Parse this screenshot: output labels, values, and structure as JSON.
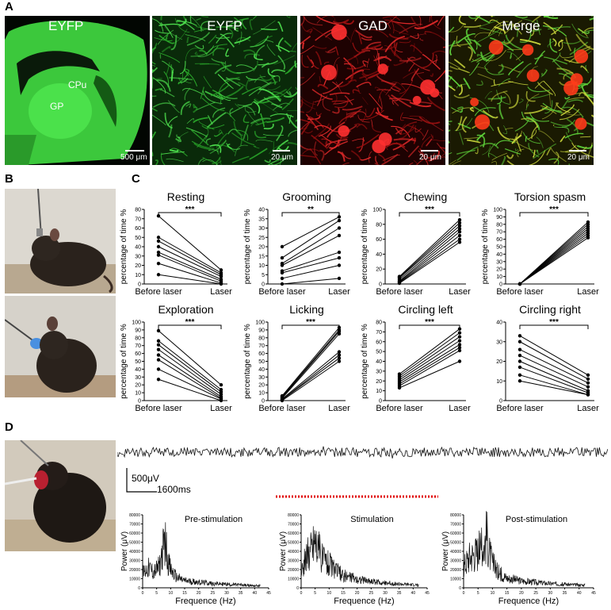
{
  "panels": {
    "a": "A",
    "b": "B",
    "c": "C",
    "d": "D"
  },
  "panel_a": {
    "images": [
      {
        "title": "EYFP",
        "scale": "500 μm",
        "labels": [
          "CPu",
          "GP"
        ]
      },
      {
        "title": "EYFP",
        "scale": "20 μm"
      },
      {
        "title": "GAD",
        "scale": "20 μm"
      },
      {
        "title": "Merge",
        "scale": "20 μm"
      }
    ]
  },
  "chart_data": [
    {
      "type": "line",
      "title": "Resting",
      "ylabel": "percentage of time %",
      "categories": [
        "Before laser",
        "Laser"
      ],
      "ylim": [
        0,
        80
      ],
      "yticks": [
        0,
        10,
        20,
        30,
        40,
        50,
        60,
        70,
        80
      ],
      "sig": "***",
      "series": [
        {
          "values": [
            73,
            15
          ]
        },
        {
          "values": [
            50,
            12
          ]
        },
        {
          "values": [
            46,
            10
          ]
        },
        {
          "values": [
            40,
            8
          ]
        },
        {
          "values": [
            34,
            5
          ]
        },
        {
          "values": [
            31,
            3
          ]
        },
        {
          "values": [
            22,
            1
          ]
        },
        {
          "values": [
            10,
            0
          ]
        }
      ]
    },
    {
      "type": "line",
      "title": "Grooming",
      "ylabel": "percentage of time %",
      "categories": [
        "Before laser",
        "Laser"
      ],
      "ylim": [
        0,
        40
      ],
      "yticks": [
        0,
        5,
        10,
        15,
        20,
        25,
        30,
        35,
        40
      ],
      "sig": "**",
      "series": [
        {
          "values": [
            20,
            36
          ]
        },
        {
          "values": [
            14,
            34
          ]
        },
        {
          "values": [
            11,
            30
          ]
        },
        {
          "values": [
            10,
            26
          ]
        },
        {
          "values": [
            7,
            17
          ]
        },
        {
          "values": [
            6,
            14
          ]
        },
        {
          "values": [
            3,
            10
          ]
        },
        {
          "values": [
            0,
            3
          ]
        }
      ]
    },
    {
      "type": "line",
      "title": "Chewing",
      "ylabel": "percentage of time %",
      "categories": [
        "Before laser",
        "Laser"
      ],
      "ylim": [
        0,
        100
      ],
      "yticks": [
        0,
        20,
        40,
        60,
        80,
        100
      ],
      "sig": "***",
      "series": [
        {
          "values": [
            10,
            86
          ]
        },
        {
          "values": [
            9,
            82
          ]
        },
        {
          "values": [
            8,
            78
          ]
        },
        {
          "values": [
            6,
            74
          ]
        },
        {
          "values": [
            4,
            70
          ]
        },
        {
          "values": [
            3,
            65
          ]
        },
        {
          "values": [
            2,
            60
          ]
        },
        {
          "values": [
            1,
            56
          ]
        }
      ]
    },
    {
      "type": "line",
      "title": "Torsion spasm",
      "ylabel": "percentage of time %",
      "categories": [
        "Before laser",
        "Laser"
      ],
      "ylim": [
        0,
        100
      ],
      "yticks": [
        0,
        10,
        20,
        30,
        40,
        50,
        60,
        70,
        80,
        90,
        100
      ],
      "sig": "***",
      "series": [
        {
          "values": [
            0,
            83
          ]
        },
        {
          "values": [
            0,
            80
          ]
        },
        {
          "values": [
            0,
            77
          ]
        },
        {
          "values": [
            0,
            74
          ]
        },
        {
          "values": [
            0,
            71
          ]
        },
        {
          "values": [
            0,
            68
          ]
        },
        {
          "values": [
            0,
            65
          ]
        },
        {
          "values": [
            0,
            62
          ]
        }
      ]
    },
    {
      "type": "line",
      "title": "Exploration",
      "ylabel": "percentage of time %",
      "categories": [
        "Before laser",
        "Laser"
      ],
      "ylim": [
        0,
        100
      ],
      "yticks": [
        0,
        10,
        20,
        30,
        40,
        50,
        60,
        70,
        80,
        90,
        100
      ],
      "sig": "***",
      "series": [
        {
          "values": [
            89,
            20
          ]
        },
        {
          "values": [
            76,
            14
          ]
        },
        {
          "values": [
            71,
            11
          ]
        },
        {
          "values": [
            65,
            8
          ]
        },
        {
          "values": [
            58,
            5
          ]
        },
        {
          "values": [
            52,
            3
          ]
        },
        {
          "values": [
            40,
            2
          ]
        },
        {
          "values": [
            27,
            0
          ]
        }
      ]
    },
    {
      "type": "line",
      "title": "Licking",
      "ylabel": "percentage of time %",
      "categories": [
        "Before laser",
        "Laser"
      ],
      "ylim": [
        0,
        100
      ],
      "yticks": [
        0,
        10,
        20,
        30,
        40,
        50,
        60,
        70,
        80,
        90,
        100
      ],
      "sig": "***",
      "series": [
        {
          "values": [
            6,
            93
          ]
        },
        {
          "values": [
            5,
            90
          ]
        },
        {
          "values": [
            4,
            88
          ]
        },
        {
          "values": [
            3,
            85
          ]
        },
        {
          "values": [
            2,
            62
          ]
        },
        {
          "values": [
            1,
            58
          ]
        },
        {
          "values": [
            1,
            54
          ]
        },
        {
          "values": [
            0,
            50
          ]
        }
      ]
    },
    {
      "type": "line",
      "title": "Circling left",
      "ylabel": "percentage of time %",
      "categories": [
        "Before laser",
        "Laser"
      ],
      "ylim": [
        0,
        80
      ],
      "yticks": [
        0,
        10,
        20,
        30,
        40,
        50,
        60,
        70,
        80
      ],
      "sig": "***",
      "series": [
        {
          "values": [
            27,
            73
          ]
        },
        {
          "values": [
            25,
            69
          ]
        },
        {
          "values": [
            23,
            65
          ]
        },
        {
          "values": [
            21,
            61
          ]
        },
        {
          "values": [
            19,
            57
          ]
        },
        {
          "values": [
            17,
            54
          ]
        },
        {
          "values": [
            15,
            51
          ]
        },
        {
          "values": [
            13,
            40
          ]
        }
      ]
    },
    {
      "type": "line",
      "title": "Circling right",
      "ylabel": "",
      "categories": [
        "Before laser",
        "Laser"
      ],
      "ylim": [
        0,
        40
      ],
      "yticks": [
        0,
        10,
        20,
        30,
        40
      ],
      "sig": "***",
      "series": [
        {
          "values": [
            33,
            13
          ]
        },
        {
          "values": [
            30,
            11
          ]
        },
        {
          "values": [
            26,
            9
          ]
        },
        {
          "values": [
            23,
            7
          ]
        },
        {
          "values": [
            20,
            5
          ]
        },
        {
          "values": [
            17,
            4
          ]
        },
        {
          "values": [
            13,
            3
          ]
        },
        {
          "values": [
            10,
            3
          ]
        }
      ]
    },
    {
      "type": "line",
      "title": "Pre-stimulation",
      "ylabel": "Power (μV)",
      "xlabel": "Frequence (Hz)",
      "xlim": [
        0,
        45
      ],
      "xticks": [
        0,
        5,
        10,
        15,
        20,
        25,
        30,
        35,
        40,
        45
      ],
      "ylim": [
        0,
        80000
      ],
      "yticks": [
        0,
        10000,
        20000,
        30000,
        40000,
        50000,
        60000,
        70000,
        80000
      ],
      "series": [
        {
          "x": [
            0,
            2,
            4,
            6,
            7,
            8,
            9,
            10,
            12,
            15,
            20,
            25,
            30,
            35,
            40
          ],
          "values": [
            20000,
            28000,
            22000,
            30000,
            50000,
            68000,
            40000,
            25000,
            15000,
            10000,
            8000,
            6000,
            5000,
            4000,
            3000
          ]
        }
      ]
    },
    {
      "type": "line",
      "title": "Stimulation",
      "ylabel": "Power (μV)",
      "xlabel": "Frequence (Hz)",
      "xlim": [
        0,
        45
      ],
      "xticks": [
        0,
        5,
        10,
        15,
        20,
        25,
        30,
        35,
        40,
        45
      ],
      "ylim": [
        0,
        80000
      ],
      "yticks": [
        0,
        10000,
        20000,
        30000,
        40000,
        50000,
        60000,
        70000,
        80000
      ],
      "series": [
        {
          "x": [
            0,
            2,
            4,
            5,
            6,
            8,
            10,
            12,
            15,
            20,
            25,
            30,
            35,
            40
          ],
          "values": [
            25000,
            45000,
            60000,
            72000,
            55000,
            40000,
            35000,
            25000,
            18000,
            12000,
            9000,
            7000,
            5000,
            4000
          ]
        }
      ]
    },
    {
      "type": "line",
      "title": "Post-stimulation",
      "ylabel": "Power (μV)",
      "xlabel": "Frequence (Hz)",
      "xlim": [
        0,
        45
      ],
      "xticks": [
        0,
        5,
        10,
        15,
        20,
        25,
        30,
        35,
        40,
        45
      ],
      "ylim": [
        0,
        80000
      ],
      "yticks": [
        0,
        10000,
        20000,
        30000,
        40000,
        50000,
        60000,
        70000,
        80000
      ],
      "series": [
        {
          "x": [
            0,
            2,
            4,
            6,
            7,
            8,
            9,
            10,
            12,
            15,
            20,
            25,
            30,
            35,
            40
          ],
          "values": [
            30000,
            45000,
            50000,
            55000,
            60000,
            78000,
            50000,
            35000,
            22000,
            14000,
            10000,
            8000,
            6000,
            5000,
            4000
          ]
        }
      ]
    }
  ],
  "panel_d": {
    "scale_v": "500μV",
    "scale_t": "1600ms"
  },
  "colors": {
    "eyfp": "#3cd23c",
    "gad": "#d21e1e",
    "stim": "#e00000"
  }
}
